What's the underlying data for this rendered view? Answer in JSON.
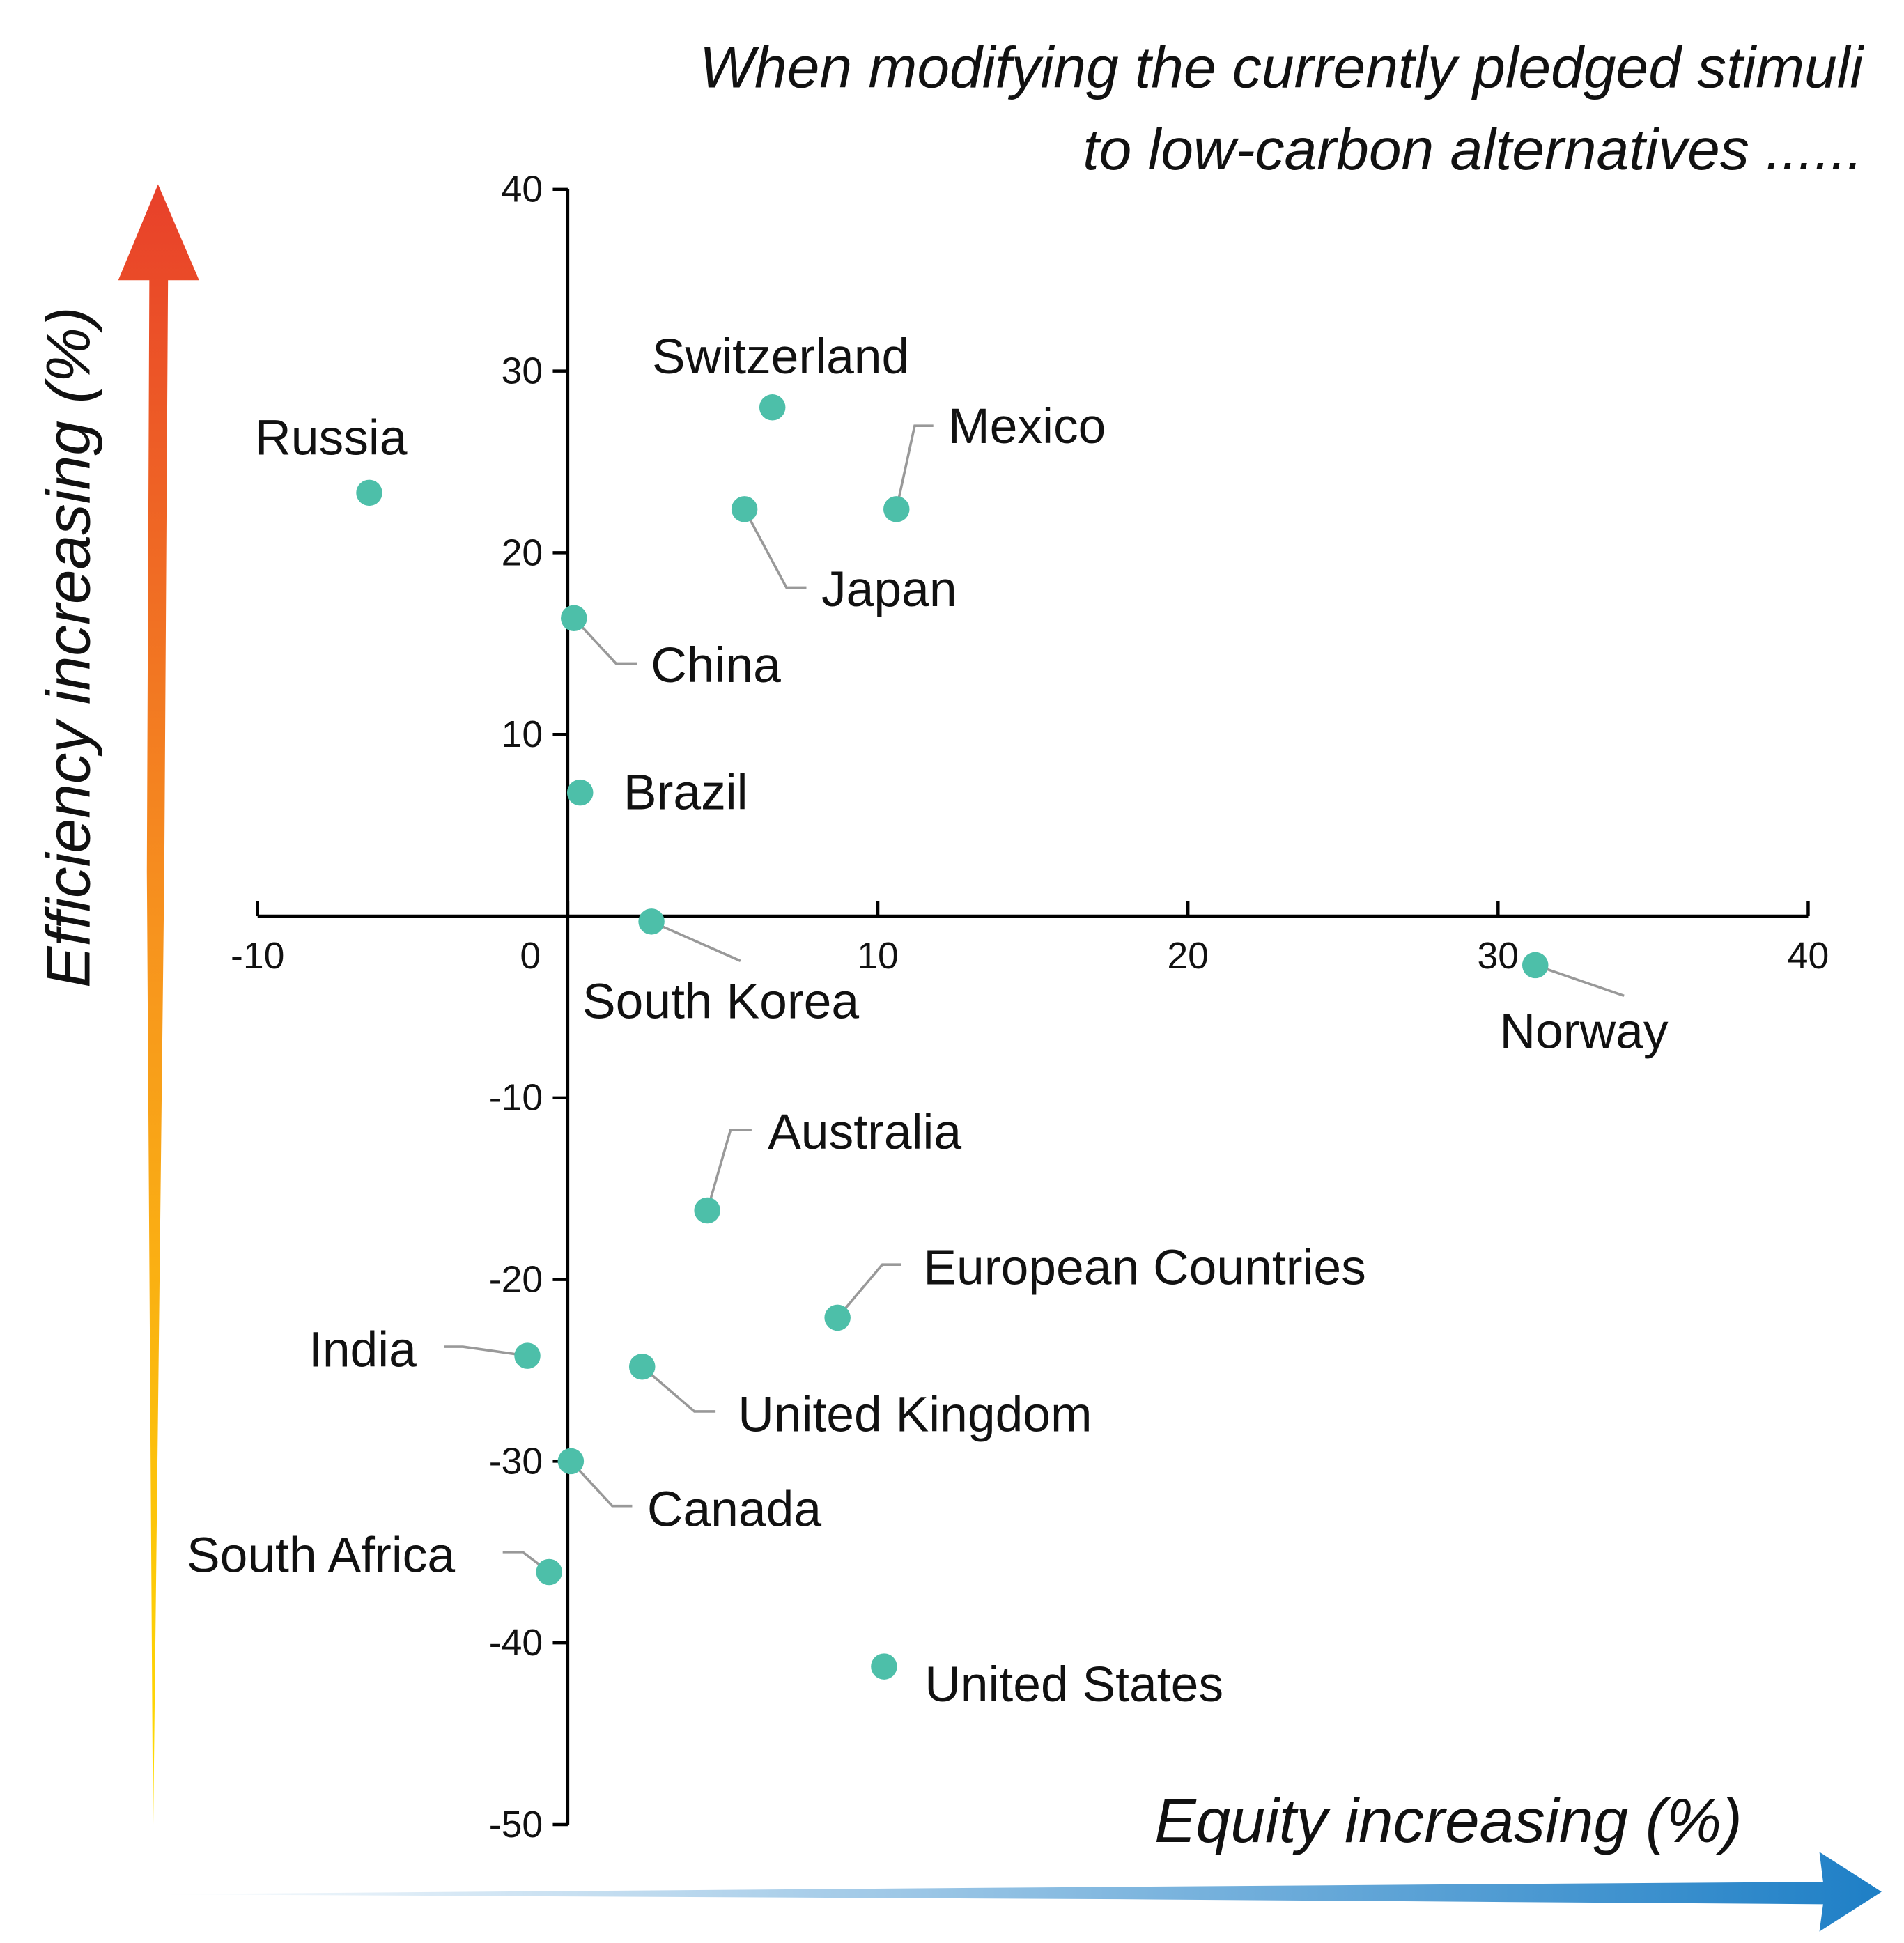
{
  "chart_data": {
    "type": "scatter",
    "title": [
      "When modifying the currently pledged stimuli",
      "to low-carbon alternatives ......"
    ],
    "xlabel": "Equity increasing (%)",
    "ylabel": "Efficiency increasing (%)",
    "xlim": [
      -10,
      40
    ],
    "ylim": [
      -50,
      40
    ],
    "xticks": [
      -10,
      0,
      10,
      20,
      30,
      40
    ],
    "yticks": [
      40,
      30,
      20,
      10,
      -10,
      -20,
      -30,
      -40,
      -50
    ],
    "grid": false,
    "legend": "none",
    "colors": {
      "points": "#4dbfa9",
      "leader": "#999999",
      "efficiency_arrow": [
        "#e8402a",
        "#f7931e",
        "#ffe000"
      ],
      "equity_arrow": [
        "#ffffff",
        "#1e7fc6"
      ]
    },
    "points": [
      {
        "label": "Russia",
        "x": -6.4,
        "y": 23.3
      },
      {
        "label": "Switzerland",
        "x": 6.6,
        "y": 28.0
      },
      {
        "label": "Mexico",
        "x": 10.6,
        "y": 22.4
      },
      {
        "label": "Japan",
        "x": 5.7,
        "y": 22.4
      },
      {
        "label": "China",
        "x": 0.2,
        "y": 16.4
      },
      {
        "label": "Brazil",
        "x": 0.4,
        "y": 6.8
      },
      {
        "label": "South Korea",
        "x": 2.7,
        "y": -0.3
      },
      {
        "label": "Norway",
        "x": 31.2,
        "y": -2.7
      },
      {
        "label": "Australia",
        "x": 4.5,
        "y": -16.2
      },
      {
        "label": "European Countries",
        "x": 8.7,
        "y": -22.1
      },
      {
        "label": "India",
        "x": -1.3,
        "y": -24.2
      },
      {
        "label": "United Kingdom",
        "x": 2.4,
        "y": -24.8
      },
      {
        "label": "Canada",
        "x": 0.1,
        "y": -30.0
      },
      {
        "label": "South Africa",
        "x": -0.6,
        "y": -36.1
      },
      {
        "label": "United States",
        "x": 10.2,
        "y": -41.3
      }
    ]
  }
}
